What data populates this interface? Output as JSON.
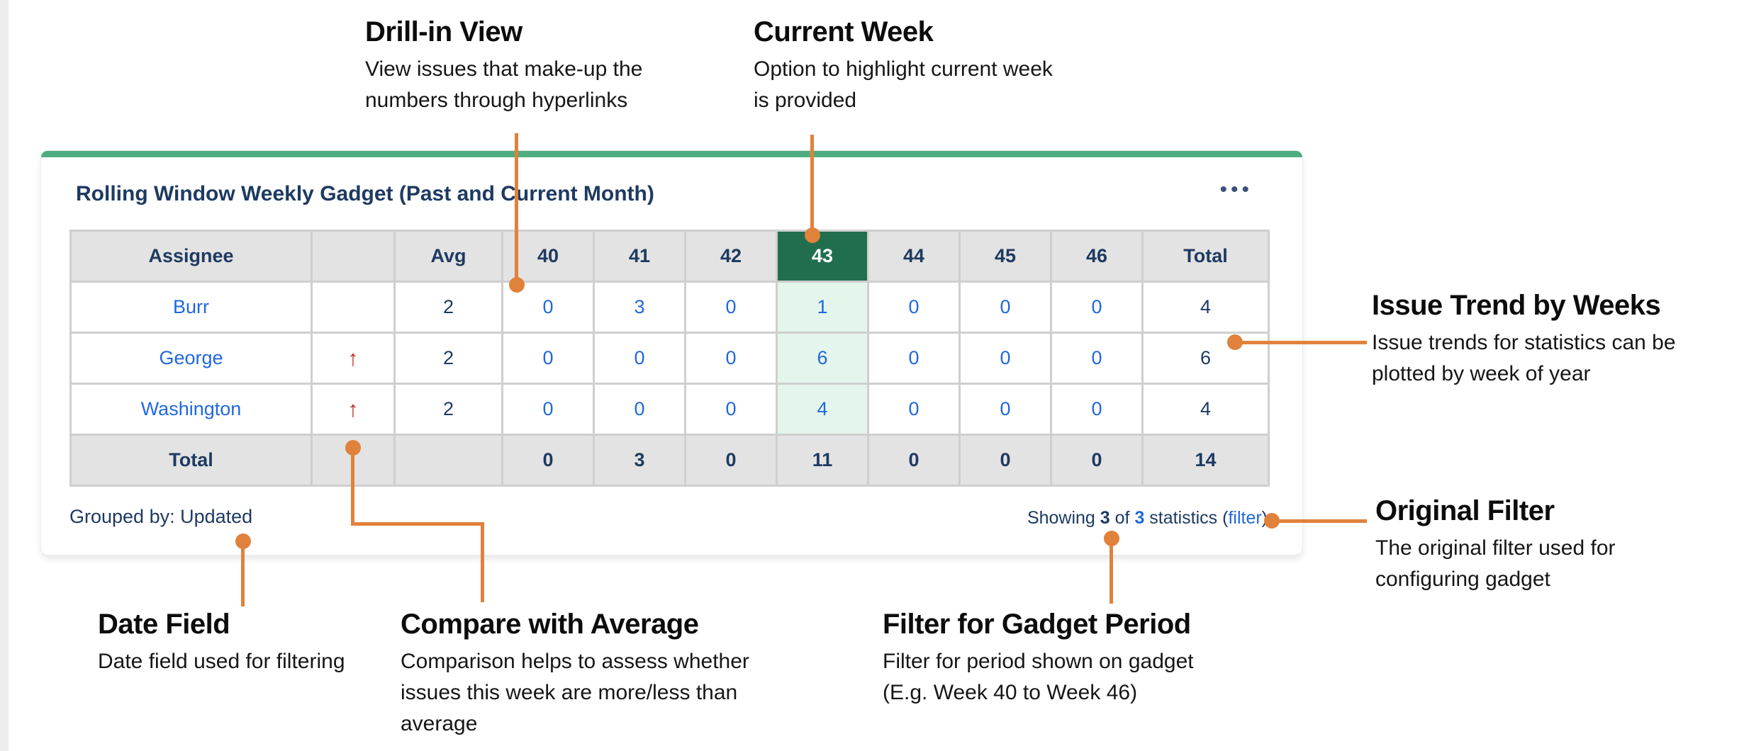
{
  "colors": {
    "accent_green": "#4dad80",
    "header_green": "#216e4e",
    "highlight_green": "#e4f6ec",
    "orange": "#e0823c",
    "red": "#bf2b20",
    "blue": "#2068dd",
    "navy": "#1e3a61"
  },
  "gadget": {
    "title": "Rolling Window Weekly Gadget (Past and Current Month)",
    "menu_icon": "•••",
    "grouped_by": "Grouped by: Updated",
    "showing": {
      "prefix": "Showing ",
      "count": "3",
      "of": " of ",
      "total": "3",
      "suffix": " statistics (",
      "filter_link": "filter",
      "close": ")"
    }
  },
  "table": {
    "columns": [
      "Assignee",
      "",
      "Avg",
      "40",
      "41",
      "42",
      "43",
      "44",
      "45",
      "46",
      "Total"
    ],
    "current_week": "43",
    "trend_up_icon": "↑",
    "rows": [
      {
        "assignee": "Burr",
        "trend": "",
        "avg": "2",
        "weeks": [
          "0",
          "3",
          "0",
          "1",
          "0",
          "0",
          "0"
        ],
        "total": "4"
      },
      {
        "assignee": "George",
        "trend": "↑",
        "avg": "2",
        "weeks": [
          "0",
          "0",
          "0",
          "6",
          "0",
          "0",
          "0"
        ],
        "total": "6"
      },
      {
        "assignee": "Washington",
        "trend": "↑",
        "avg": "2",
        "weeks": [
          "0",
          "0",
          "0",
          "4",
          "0",
          "0",
          "0"
        ],
        "total": "4"
      }
    ],
    "total_row": {
      "label": "Total",
      "weeks": [
        "0",
        "3",
        "0",
        "11",
        "0",
        "0",
        "0"
      ],
      "total": "14"
    }
  },
  "annotations": {
    "drill_in": {
      "title": "Drill-in View",
      "line1": "View issues that make-up the",
      "line2": "numbers through hyperlinks"
    },
    "current_week": {
      "title": "Current Week",
      "line1": "Option to highlight current week",
      "line2": "is provided"
    },
    "issue_trend": {
      "title": "Issue Trend by Weeks",
      "line1": "Issue trends for statistics can be",
      "line2": "plotted by week of year"
    },
    "original_filter": {
      "title": "Original Filter",
      "line1": "The original filter used for",
      "line2": "configuring gadget"
    },
    "date_field": {
      "title": "Date Field",
      "line1": "Date field used for filtering"
    },
    "compare_average": {
      "title": "Compare with Average",
      "line1": "Comparison helps to assess whether",
      "line2": "issues this week are more/less than",
      "line3": "average"
    },
    "gadget_period": {
      "title": "Filter for Gadget Period",
      "line1": "Filter for period shown on gadget",
      "line2": "(E.g. Week 40 to Week 46)"
    }
  }
}
